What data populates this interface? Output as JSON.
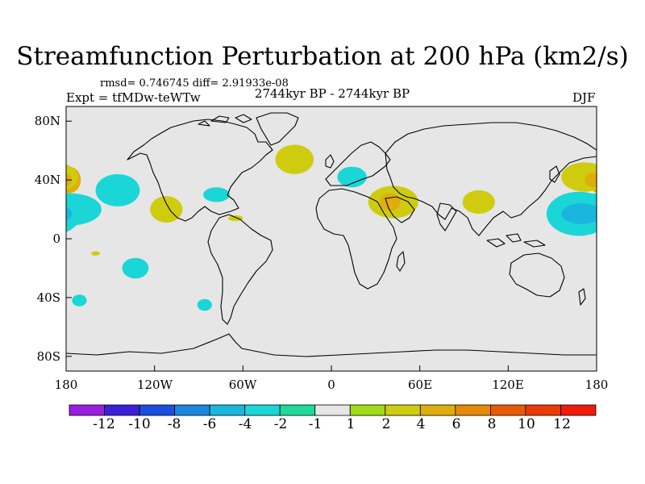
{
  "chart_data": {
    "type": "contour-map",
    "title": "Streamfunction Perturbation at 200 hPa (km2/s)",
    "stats": "rmsd= 0.746745 diff= 2.91933e-08",
    "experiment": "Expt = tfMDw-teWTw",
    "period": "2744kyr BP - 2744kyr BP",
    "season": "DJF",
    "x_ticks": [
      "180",
      "120W",
      "60W",
      "0",
      "60E",
      "120E",
      "180"
    ],
    "y_ticks": [
      "80N",
      "40N",
      "0",
      "40S",
      "80S"
    ],
    "lon_range": [
      -180,
      180
    ],
    "lat_range": [
      -90,
      90
    ],
    "colorbar": {
      "labels": [
        "-12",
        "-10",
        "-8",
        "-6",
        "-4",
        "-2",
        "-1",
        "1",
        "2",
        "4",
        "6",
        "8",
        "10",
        "12"
      ],
      "colors": [
        "#9b1fe0",
        "#3c1fd8",
        "#1a4fe0",
        "#1b86e0",
        "#1bb6de",
        "#1bd6d6",
        "#1ed99a",
        "#e6e6e6",
        "#a0dc14",
        "#cfcc10",
        "#dfae0a",
        "#e48a08",
        "#e85a06",
        "#ec3a06",
        "#f01a0a"
      ]
    },
    "anomalies": [
      {
        "lon": -178,
        "lat": 40,
        "rx": 8,
        "ry": 9,
        "level": "4"
      },
      {
        "lon": -178,
        "lat": 20,
        "rx": 22,
        "ry": 11,
        "level": "-2"
      },
      {
        "lon": -145,
        "lat": 33,
        "rx": 15,
        "ry": 11,
        "level": "-2"
      },
      {
        "lon": -112,
        "lat": 20,
        "rx": 11,
        "ry": 9,
        "level": "2"
      },
      {
        "lon": -78,
        "lat": 30,
        "rx": 9,
        "ry": 5,
        "level": "-2"
      },
      {
        "lon": -65,
        "lat": 14,
        "rx": 5,
        "ry": 2,
        "level": "2"
      },
      {
        "lon": -25,
        "lat": 54,
        "rx": 13,
        "ry": 10,
        "level": "2"
      },
      {
        "lon": 14,
        "lat": 42,
        "rx": 10,
        "ry": 7,
        "level": "-2"
      },
      {
        "lon": 42,
        "lat": 25,
        "rx": 17,
        "ry": 11,
        "level": "2"
      },
      {
        "lon": 40,
        "lat": 25,
        "rx": 7,
        "ry": 6,
        "level": "4"
      },
      {
        "lon": 100,
        "lat": 25,
        "rx": 11,
        "ry": 8,
        "level": "2"
      },
      {
        "lon": 172,
        "lat": 42,
        "rx": 16,
        "ry": 10,
        "level": "2"
      },
      {
        "lon": 178,
        "lat": 40,
        "rx": 6,
        "ry": 5,
        "level": "4"
      },
      {
        "lon": 168,
        "lat": 17,
        "rx": 22,
        "ry": 15,
        "level": "-2"
      },
      {
        "lon": 170,
        "lat": 17,
        "rx": 14,
        "ry": 7,
        "level": "-4"
      },
      {
        "lon": -133,
        "lat": -20,
        "rx": 9,
        "ry": 7,
        "level": "-2"
      },
      {
        "lon": -160,
        "lat": -10,
        "rx": 3,
        "ry": 1.5,
        "level": "2"
      },
      {
        "lon": -171,
        "lat": -42,
        "rx": 5,
        "ry": 4,
        "level": "-2"
      },
      {
        "lon": -86,
        "lat": -45,
        "rx": 5,
        "ry": 4,
        "level": "-2"
      }
    ]
  }
}
